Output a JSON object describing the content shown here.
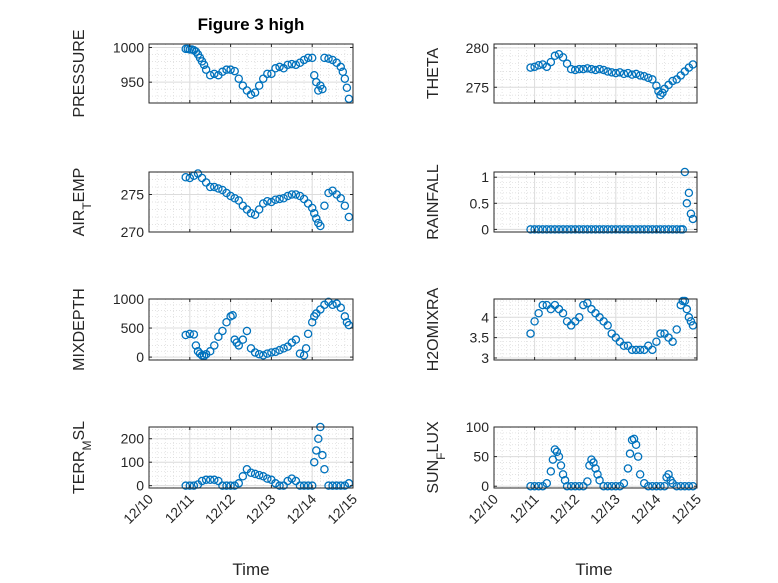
{
  "figure": {
    "title": "Figure 3 high",
    "x_label": "Time",
    "x_tick_labels": [
      "12/10",
      "12/11",
      "12/12",
      "12/13",
      "12/14",
      "12/15"
    ],
    "marker_color": "#0072BD"
  },
  "chart_data": [
    {
      "type": "scatter",
      "ylabel": "PRESSURE",
      "ylabel_sub": "",
      "ylim": [
        920,
        1005
      ],
      "yticks": [
        950,
        1000
      ],
      "xlim": [
        0,
        5
      ],
      "x": [
        0.9,
        0.95,
        1.0,
        1.05,
        1.1,
        1.15,
        1.2,
        1.25,
        1.3,
        1.35,
        1.4,
        1.5,
        1.6,
        1.7,
        1.8,
        1.9,
        2.0,
        2.1,
        2.2,
        2.3,
        2.4,
        2.5,
        2.6,
        2.7,
        2.8,
        2.9,
        3.0,
        3.1,
        3.2,
        3.3,
        3.4,
        3.5,
        3.6,
        3.7,
        3.8,
        3.9,
        4.0,
        4.05,
        4.1,
        4.15,
        4.2,
        4.25,
        4.3,
        4.4,
        4.5,
        4.6,
        4.7,
        4.75,
        4.8,
        4.85,
        4.9
      ],
      "y": [
        998,
        998,
        997,
        997,
        996,
        994,
        990,
        985,
        980,
        975,
        968,
        960,
        962,
        960,
        965,
        968,
        968,
        966,
        955,
        945,
        938,
        932,
        935,
        945,
        955,
        962,
        962,
        970,
        972,
        970,
        975,
        976,
        975,
        978,
        982,
        985,
        985,
        960,
        950,
        938,
        945,
        940,
        985,
        984,
        982,
        978,
        972,
        965,
        955,
        942,
        926
      ]
    },
    {
      "type": "scatter",
      "ylabel": "THETA",
      "ylabel_sub": "",
      "ylim": [
        273,
        280.5
      ],
      "yticks": [
        275,
        280
      ],
      "xlim": [
        0,
        5
      ],
      "x": [
        0.9,
        1.0,
        1.1,
        1.2,
        1.3,
        1.4,
        1.5,
        1.6,
        1.7,
        1.8,
        1.9,
        2.0,
        2.1,
        2.2,
        2.3,
        2.4,
        2.5,
        2.6,
        2.7,
        2.8,
        2.9,
        3.0,
        3.1,
        3.2,
        3.3,
        3.4,
        3.5,
        3.6,
        3.7,
        3.8,
        3.9,
        4.0,
        4.05,
        4.1,
        4.15,
        4.2,
        4.3,
        4.4,
        4.5,
        4.6,
        4.7,
        4.8,
        4.9
      ],
      "y": [
        277.5,
        277.6,
        277.8,
        277.9,
        277.6,
        278.2,
        279.0,
        279.2,
        278.8,
        278.0,
        277.3,
        277.2,
        277.3,
        277.3,
        277.4,
        277.3,
        277.2,
        277.3,
        277.2,
        277.0,
        276.9,
        276.8,
        276.9,
        276.7,
        276.8,
        276.6,
        276.7,
        276.5,
        276.4,
        276.2,
        276.0,
        275.2,
        274.5,
        274.0,
        274.3,
        274.8,
        275.3,
        275.8,
        276.0,
        276.5,
        277.0,
        277.5,
        277.9
      ]
    },
    {
      "type": "scatter",
      "ylabel": "AIR",
      "ylabel_sub": "T",
      "ylabel_tail": "EMP",
      "ylim": [
        270,
        278
      ],
      "yticks": [
        270,
        275
      ],
      "xlim": [
        0,
        5
      ],
      "x": [
        0.9,
        1.0,
        1.1,
        1.2,
        1.3,
        1.4,
        1.5,
        1.6,
        1.7,
        1.8,
        1.9,
        2.0,
        2.1,
        2.2,
        2.3,
        2.4,
        2.5,
        2.6,
        2.7,
        2.8,
        2.9,
        3.0,
        3.1,
        3.2,
        3.3,
        3.4,
        3.5,
        3.6,
        3.7,
        3.8,
        3.9,
        4.0,
        4.05,
        4.1,
        4.15,
        4.2,
        4.3,
        4.4,
        4.5,
        4.6,
        4.7,
        4.8,
        4.9
      ],
      "y": [
        277.3,
        277.2,
        277.5,
        277.8,
        277.2,
        276.6,
        276.0,
        276.0,
        275.8,
        275.6,
        275.2,
        274.8,
        274.5,
        274.2,
        273.5,
        273.0,
        272.5,
        272.3,
        273.0,
        273.8,
        274.1,
        274.0,
        274.3,
        274.4,
        274.5,
        274.8,
        275.0,
        275.0,
        274.8,
        274.4,
        273.8,
        273.2,
        272.5,
        271.8,
        271.2,
        270.8,
        273.5,
        275.2,
        275.5,
        275.0,
        274.5,
        273.5,
        272.0
      ]
    },
    {
      "type": "scatter",
      "ylabel": "RAINFALL",
      "ylabel_sub": "",
      "ylim": [
        -0.05,
        1.1
      ],
      "yticks": [
        0,
        0.5,
        1
      ],
      "xlim": [
        0,
        5
      ],
      "x": [
        0.9,
        1.0,
        1.1,
        1.2,
        1.3,
        1.4,
        1.5,
        1.6,
        1.7,
        1.8,
        1.9,
        2.0,
        2.1,
        2.2,
        2.3,
        2.4,
        2.5,
        2.6,
        2.7,
        2.8,
        2.9,
        3.0,
        3.1,
        3.2,
        3.3,
        3.4,
        3.5,
        3.6,
        3.7,
        3.8,
        3.9,
        4.0,
        4.1,
        4.2,
        4.3,
        4.4,
        4.5,
        4.6,
        4.65,
        4.7,
        4.75,
        4.8,
        4.85,
        4.9
      ],
      "y": [
        0,
        0,
        0,
        0,
        0,
        0,
        0,
        0,
        0,
        0,
        0,
        0,
        0,
        0,
        0,
        0,
        0,
        0,
        0,
        0,
        0,
        0,
        0,
        0,
        0,
        0,
        0,
        0,
        0,
        0,
        0,
        0,
        0,
        0,
        0,
        0,
        0,
        0,
        0,
        1.1,
        0.5,
        0.7,
        0.3,
        0.2
      ]
    },
    {
      "type": "scatter",
      "ylabel": "MIXDEPTH",
      "ylabel_sub": "",
      "ylim": [
        -50,
        1000
      ],
      "yticks": [
        0,
        500,
        1000
      ],
      "xlim": [
        0,
        5
      ],
      "x": [
        0.9,
        1.0,
        1.1,
        1.15,
        1.2,
        1.25,
        1.3,
        1.35,
        1.4,
        1.5,
        1.6,
        1.7,
        1.8,
        1.9,
        2.0,
        2.05,
        2.1,
        2.15,
        2.2,
        2.3,
        2.4,
        2.5,
        2.6,
        2.7,
        2.8,
        2.9,
        3.0,
        3.1,
        3.2,
        3.3,
        3.4,
        3.5,
        3.6,
        3.7,
        3.8,
        3.85,
        3.9,
        4.0,
        4.05,
        4.1,
        4.2,
        4.3,
        4.4,
        4.5,
        4.6,
        4.7,
        4.8,
        4.85,
        4.9
      ],
      "y": [
        380,
        400,
        390,
        200,
        100,
        60,
        30,
        20,
        50,
        100,
        200,
        350,
        450,
        600,
        700,
        720,
        300,
        250,
        200,
        300,
        450,
        150,
        80,
        50,
        30,
        60,
        80,
        90,
        120,
        150,
        180,
        250,
        300,
        60,
        30,
        150,
        400,
        600,
        700,
        750,
        820,
        900,
        950,
        900,
        920,
        850,
        700,
        600,
        550
      ]
    },
    {
      "type": "scatter",
      "ylabel": "H2OMIXRA",
      "ylabel_sub": "",
      "ylim": [
        2.95,
        4.45
      ],
      "yticks": [
        3,
        3.5,
        4
      ],
      "xlim": [
        0,
        5
      ],
      "x": [
        0.9,
        1.0,
        1.1,
        1.2,
        1.3,
        1.4,
        1.5,
        1.6,
        1.7,
        1.8,
        1.9,
        2.0,
        2.1,
        2.2,
        2.3,
        2.4,
        2.5,
        2.6,
        2.7,
        2.8,
        2.9,
        3.0,
        3.1,
        3.2,
        3.3,
        3.4,
        3.5,
        3.6,
        3.7,
        3.8,
        3.9,
        4.0,
        4.1,
        4.2,
        4.3,
        4.4,
        4.5,
        4.6,
        4.65,
        4.7,
        4.75,
        4.8,
        4.85,
        4.9
      ],
      "y": [
        3.6,
        3.9,
        4.1,
        4.3,
        4.3,
        4.2,
        4.3,
        4.2,
        4.1,
        3.9,
        3.8,
        3.9,
        4.0,
        4.3,
        4.35,
        4.2,
        4.1,
        4.0,
        3.9,
        3.8,
        3.6,
        3.5,
        3.4,
        3.3,
        3.3,
        3.2,
        3.2,
        3.2,
        3.2,
        3.3,
        3.2,
        3.4,
        3.6,
        3.6,
        3.5,
        3.4,
        3.7,
        4.3,
        4.4,
        4.4,
        4.2,
        4.0,
        3.9,
        3.8
      ]
    },
    {
      "type": "scatter",
      "ylabel": "TERR",
      "ylabel_sub": "M",
      "ylabel_tail": "SL",
      "ylim": [
        -10,
        250
      ],
      "yticks": [
        0,
        100,
        200
      ],
      "xlim": [
        0,
        5
      ],
      "x": [
        0.9,
        1.0,
        1.1,
        1.2,
        1.3,
        1.4,
        1.5,
        1.6,
        1.7,
        1.8,
        1.9,
        2.0,
        2.1,
        2.2,
        2.3,
        2.4,
        2.5,
        2.6,
        2.7,
        2.8,
        2.9,
        3.0,
        3.1,
        3.2,
        3.3,
        3.4,
        3.5,
        3.6,
        3.7,
        3.8,
        3.9,
        4.0,
        4.05,
        4.1,
        4.15,
        4.2,
        4.25,
        4.3,
        4.4,
        4.5,
        4.6,
        4.7,
        4.8,
        4.9
      ],
      "y": [
        0,
        0,
        0,
        5,
        20,
        25,
        25,
        25,
        20,
        0,
        0,
        0,
        0,
        10,
        40,
        70,
        55,
        50,
        45,
        40,
        30,
        25,
        10,
        0,
        0,
        20,
        30,
        20,
        0,
        0,
        0,
        0,
        100,
        150,
        200,
        250,
        130,
        70,
        0,
        0,
        0,
        0,
        0,
        10
      ]
    },
    {
      "type": "scatter",
      "ylabel": "SUN",
      "ylabel_sub": "F",
      "ylabel_tail": "LUX",
      "ylim": [
        -3,
        100
      ],
      "yticks": [
        0,
        50,
        100
      ],
      "xlim": [
        0,
        5
      ],
      "x": [
        0.9,
        1.0,
        1.1,
        1.2,
        1.3,
        1.4,
        1.45,
        1.5,
        1.55,
        1.6,
        1.65,
        1.7,
        1.75,
        1.8,
        1.9,
        2.0,
        2.1,
        2.2,
        2.3,
        2.35,
        2.4,
        2.45,
        2.5,
        2.55,
        2.6,
        2.7,
        2.8,
        2.9,
        3.0,
        3.1,
        3.2,
        3.3,
        3.35,
        3.4,
        3.45,
        3.5,
        3.55,
        3.6,
        3.7,
        3.8,
        3.9,
        4.0,
        4.1,
        4.2,
        4.25,
        4.3,
        4.35,
        4.4,
        4.5,
        4.6,
        4.7,
        4.8,
        4.9
      ],
      "y": [
        0,
        0,
        0,
        0,
        5,
        25,
        45,
        62,
        58,
        50,
        35,
        20,
        10,
        0,
        0,
        0,
        0,
        0,
        8,
        35,
        45,
        40,
        30,
        20,
        10,
        0,
        0,
        0,
        0,
        0,
        5,
        30,
        55,
        78,
        80,
        70,
        50,
        20,
        5,
        0,
        0,
        0,
        0,
        0,
        15,
        20,
        10,
        5,
        0,
        0,
        0,
        0,
        0
      ]
    }
  ]
}
